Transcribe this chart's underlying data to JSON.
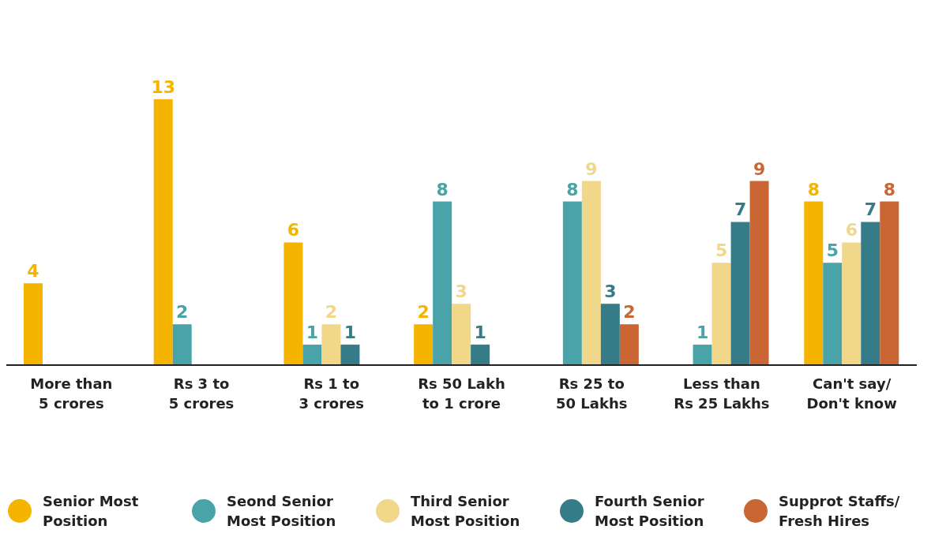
{
  "chart_data": {
    "type": "bar",
    "categories": [
      "More than 5 crores",
      "Rs 3 to 5 crores",
      "Rs 1 to 3 crores",
      "Rs 50 Lakh to 1 crore",
      "Rs 25 to 50 Lakhs",
      "Less than Rs 25 Lakhs",
      "Can't say/ Don't know"
    ],
    "series": [
      {
        "name": "Senior Most Position",
        "color": "#f5b400",
        "values": [
          4,
          13,
          6,
          2,
          null,
          null,
          8
        ]
      },
      {
        "name": "Seond Senior Most Position",
        "color": "#4aa3a8",
        "values": [
          null,
          2,
          1,
          8,
          8,
          1,
          5
        ]
      },
      {
        "name": "Third Senior Most Position",
        "color": "#f0d78a",
        "values": [
          null,
          null,
          2,
          3,
          9,
          5,
          6
        ]
      },
      {
        "name": "Fourth Senior Most Position",
        "color": "#367b88",
        "values": [
          null,
          null,
          1,
          1,
          3,
          7,
          7
        ]
      },
      {
        "name": "Supprot Staffs/ Fresh Hires",
        "color": "#c96633",
        "values": [
          null,
          null,
          null,
          null,
          2,
          9,
          8
        ]
      }
    ],
    "data_labels": true,
    "legend": "bottom",
    "grid": false
  }
}
